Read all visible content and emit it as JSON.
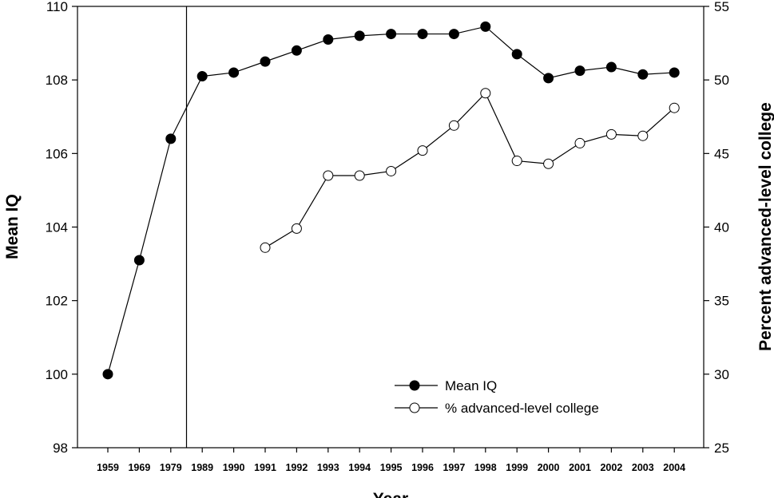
{
  "chart_data": {
    "type": "line",
    "xlabel": "Year",
    "ylabel": "Mean IQ",
    "y2label": "Percent advanced-level college",
    "categories": [
      "1959",
      "1969",
      "1979",
      "1989",
      "1990",
      "1991",
      "1992",
      "1993",
      "1994",
      "1995",
      "1996",
      "1997",
      "1998",
      "1999",
      "2000",
      "2001",
      "2002",
      "2003",
      "2004"
    ],
    "ylim": [
      98,
      110
    ],
    "y2lim": [
      25,
      55
    ],
    "yticks": [
      98,
      100,
      102,
      104,
      106,
      108,
      110
    ],
    "y2ticks": [
      25,
      30,
      35,
      40,
      45,
      50,
      55
    ],
    "vertical_line_between": [
      "1979",
      "1989"
    ],
    "legend_position": "bottom-center",
    "series": [
      {
        "name": "Mean IQ",
        "axis": "left",
        "marker": "filled",
        "values": [
          100.0,
          103.1,
          106.4,
          108.1,
          108.2,
          108.5,
          108.8,
          109.1,
          109.2,
          109.25,
          109.25,
          109.25,
          109.45,
          108.7,
          108.05,
          108.25,
          108.35,
          108.15,
          108.2
        ]
      },
      {
        "name": "% advanced-level college",
        "axis": "right",
        "marker": "open",
        "values": [
          null,
          null,
          null,
          null,
          null,
          38.6,
          39.9,
          43.5,
          43.5,
          43.8,
          45.2,
          46.9,
          49.1,
          44.5,
          44.3,
          45.7,
          46.3,
          46.2,
          48.1
        ]
      }
    ]
  }
}
